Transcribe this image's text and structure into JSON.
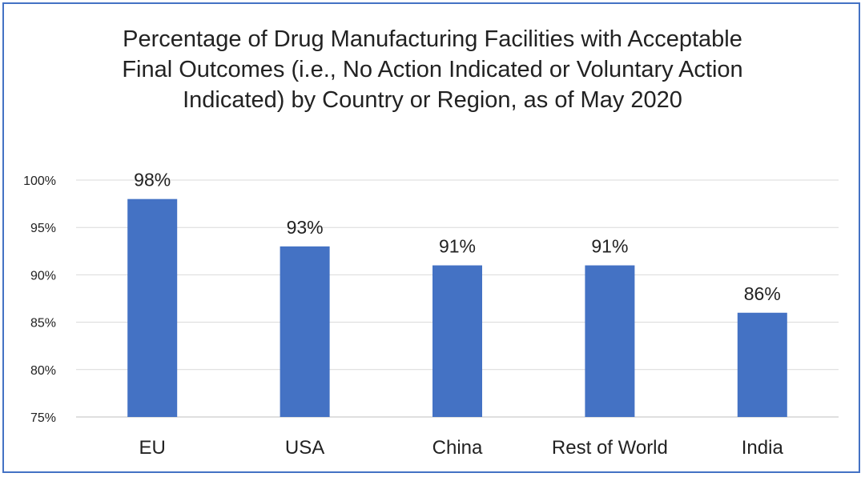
{
  "chart_data": {
    "type": "bar",
    "title": "Percentage of Drug Manufacturing Facilities with Acceptable Final Outcomes (i.e., No Action Indicated or Voluntary Action Indicated) by Country or Region, as of May 2020",
    "categories": [
      "EU",
      "USA",
      "China",
      "Rest of World",
      "India"
    ],
    "values": [
      98,
      93,
      91,
      91,
      86
    ],
    "data_labels": [
      "98%",
      "93%",
      "91%",
      "91%",
      "86%"
    ],
    "xlabel": "",
    "ylabel": "",
    "ylim": [
      75,
      100
    ],
    "yticks": [
      75,
      80,
      85,
      90,
      95,
      100
    ],
    "ytick_labels": [
      "75%",
      "80%",
      "85%",
      "90%",
      "95%",
      "100%"
    ],
    "grid": true,
    "legend": false,
    "colors": {
      "bar": "#4472c4",
      "frame": "#4472c4",
      "grid": "#d9d9d9"
    }
  }
}
